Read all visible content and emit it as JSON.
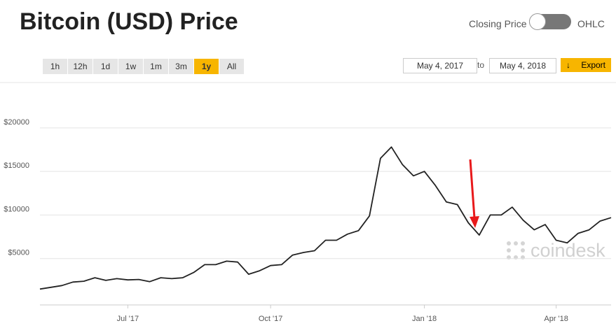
{
  "header": {
    "title": "Bitcoin (USD) Price",
    "toggle_left": "Closing Price",
    "toggle_right": "OHLC"
  },
  "controls": {
    "ranges": [
      "1h",
      "12h",
      "1d",
      "1w",
      "1m",
      "3m",
      "1y",
      "All"
    ],
    "active_range": "1y",
    "date_from": "May 4, 2017",
    "date_sep": "to",
    "date_to": "May 4, 2018",
    "export": "Export"
  },
  "watermark": "coindesk",
  "chart_data": {
    "type": "line",
    "categories": [
      null,
      null,
      null,
      null,
      null,
      null,
      null,
      null,
      "Jul '17",
      null,
      null,
      null,
      null,
      null,
      null,
      null,
      null,
      null,
      null,
      null,
      null,
      "Oct '17",
      null,
      null,
      null,
      null,
      null,
      null,
      null,
      null,
      null,
      null,
      null,
      null,
      null,
      "Jan '18",
      null,
      null,
      null,
      null,
      null,
      null,
      null,
      null,
      null,
      null,
      null,
      "Apr '18",
      null,
      null,
      null,
      null,
      null
    ],
    "values": [
      1500,
      1700,
      1900,
      2300,
      2400,
      2800,
      2500,
      2700,
      2550,
      2600,
      2350,
      2800,
      2700,
      2800,
      3400,
      4300,
      4300,
      4700,
      4600,
      3200,
      3600,
      4200,
      4300,
      5400,
      5700,
      5900,
      7100,
      7100,
      7800,
      8200,
      9900,
      16500,
      17800,
      15800,
      14500,
      15000,
      13400,
      11500,
      11200,
      9100,
      7700,
      10000,
      10000,
      10900,
      9400,
      8300,
      8900,
      7100,
      6800,
      7900,
      8300,
      9300,
      9700
    ],
    "color": "#222222",
    "ylim": [
      0,
      24000
    ],
    "yticks": [
      {
        "value": 5000,
        "label": "$5000"
      },
      {
        "value": 10000,
        "label": "$10000"
      },
      {
        "value": 15000,
        "label": "$15000"
      },
      {
        "value": 20000,
        "label": "$20000"
      }
    ],
    "grid": true
  }
}
